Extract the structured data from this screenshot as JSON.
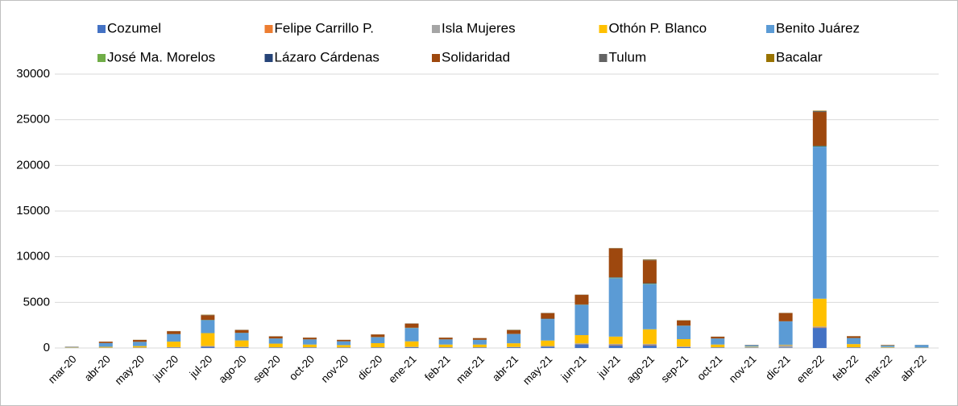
{
  "chart_data": {
    "type": "stacked_bar",
    "categories": [
      "mar-20",
      "abr-20",
      "may-20",
      "jun-20",
      "jul-20",
      "ago-20",
      "sep-20",
      "oct-20",
      "nov-20",
      "dic-20",
      "ene-21",
      "feb-21",
      "mar-21",
      "abr-21",
      "may-21",
      "jun-21",
      "jul-21",
      "ago-21",
      "sep-21",
      "oct-21",
      "nov-21",
      "dic-21",
      "ene-22",
      "feb-22",
      "mar-22",
      "abr-22"
    ],
    "series": [
      {
        "name": "Cozumel",
        "color": "#4472c4",
        "values": [
          10,
          20,
          30,
          50,
          150,
          80,
          50,
          50,
          40,
          50,
          80,
          50,
          50,
          80,
          150,
          400,
          300,
          300,
          100,
          50,
          20,
          50,
          2200,
          50,
          20,
          10
        ]
      },
      {
        "name": "Felipe Carrillo P.",
        "color": "#ed7d31",
        "values": [
          5,
          10,
          10,
          20,
          30,
          20,
          10,
          10,
          10,
          10,
          20,
          10,
          10,
          10,
          20,
          30,
          50,
          50,
          20,
          10,
          5,
          10,
          50,
          10,
          5,
          5
        ]
      },
      {
        "name": "Isla Mujeres",
        "color": "#a5a5a5",
        "values": [
          5,
          20,
          20,
          30,
          50,
          30,
          20,
          20,
          20,
          20,
          30,
          20,
          20,
          30,
          50,
          80,
          100,
          100,
          50,
          20,
          80,
          250,
          100,
          20,
          30,
          10
        ]
      },
      {
        "name": "Othón P. Blanco",
        "color": "#ffc000",
        "values": [
          40,
          80,
          150,
          600,
          1400,
          700,
          400,
          300,
          250,
          450,
          600,
          300,
          300,
          400,
          600,
          900,
          800,
          1600,
          800,
          300,
          50,
          50,
          3050,
          350,
          50,
          20
        ]
      },
      {
        "name": "Benito Juárez",
        "color": "#5b9bd5",
        "values": [
          60,
          400,
          450,
          800,
          1400,
          800,
          550,
          550,
          400,
          650,
          1450,
          550,
          500,
          1000,
          2350,
          3300,
          6400,
          4950,
          1450,
          650,
          150,
          2550,
          16650,
          650,
          150,
          290
        ]
      },
      {
        "name": "José Ma. Morelos",
        "color": "#70ad47",
        "values": [
          2,
          5,
          10,
          20,
          30,
          20,
          10,
          10,
          10,
          10,
          20,
          10,
          10,
          10,
          20,
          30,
          50,
          50,
          20,
          10,
          5,
          10,
          50,
          10,
          20,
          5
        ]
      },
      {
        "name": "Lázaro Cárdenas",
        "color": "#264478",
        "values": [
          3,
          10,
          10,
          20,
          30,
          20,
          10,
          10,
          10,
          10,
          20,
          10,
          10,
          20,
          30,
          30,
          50,
          50,
          20,
          10,
          5,
          10,
          50,
          10,
          10,
          5
        ]
      },
      {
        "name": "Solidaridad",
        "color": "#9e480e",
        "values": [
          20,
          150,
          200,
          300,
          500,
          300,
          220,
          180,
          150,
          280,
          450,
          180,
          180,
          400,
          600,
          1050,
          3150,
          2500,
          550,
          180,
          25,
          900,
          3700,
          180,
          50,
          5
        ]
      },
      {
        "name": "Tulum",
        "color": "#636363",
        "values": [
          3,
          5,
          10,
          10,
          30,
          20,
          10,
          10,
          5,
          10,
          20,
          10,
          10,
          30,
          20,
          20,
          30,
          60,
          20,
          10,
          5,
          10,
          100,
          10,
          5,
          0
        ]
      },
      {
        "name": "Bacalar",
        "color": "#997300",
        "values": [
          2,
          5,
          10,
          10,
          30,
          10,
          10,
          10,
          5,
          10,
          10,
          10,
          10,
          20,
          10,
          10,
          20,
          40,
          20,
          10,
          5,
          10,
          50,
          10,
          10,
          0
        ]
      }
    ],
    "ylim": [
      0,
      30000
    ],
    "yticks": [
      0,
      5000,
      10000,
      15000,
      20000,
      25000,
      30000
    ],
    "grid": true
  }
}
